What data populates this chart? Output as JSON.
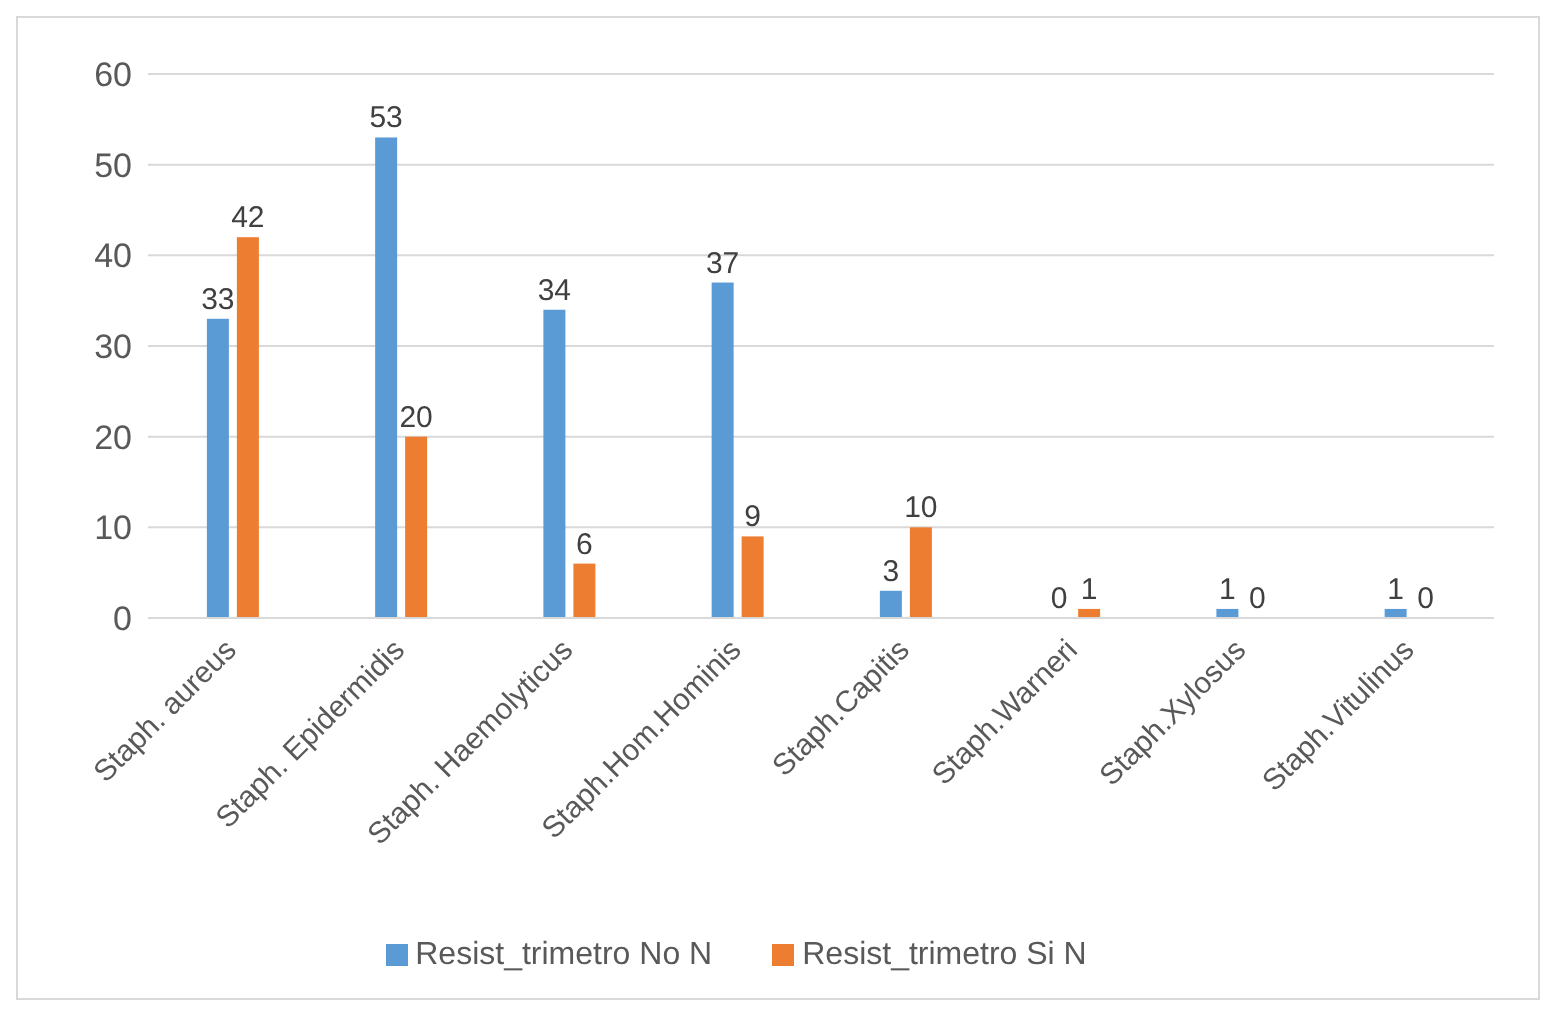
{
  "chart_data": {
    "type": "bar",
    "categories": [
      "Staph. aureus",
      "Staph. Epidermidis",
      "Staph. Haemolyticus",
      "Staph.Hom.Hominis",
      "Staph.Capitis",
      "Staph.Warneri",
      "Staph.Xylosus",
      "Staph.Vitulinus"
    ],
    "series": [
      {
        "name": "Resist_trimetro No N",
        "color": "#5b9bd5",
        "values": [
          33,
          53,
          34,
          37,
          3,
          0,
          1,
          1
        ]
      },
      {
        "name": "Resist_trimetro Si N",
        "color": "#ed7d31",
        "values": [
          42,
          20,
          6,
          9,
          10,
          1,
          0,
          0
        ]
      }
    ],
    "ylim": [
      0,
      60
    ],
    "yticks": [
      0,
      10,
      20,
      30,
      40,
      50,
      60
    ],
    "grid": "y",
    "legend": "bottom",
    "data_labels": true
  }
}
